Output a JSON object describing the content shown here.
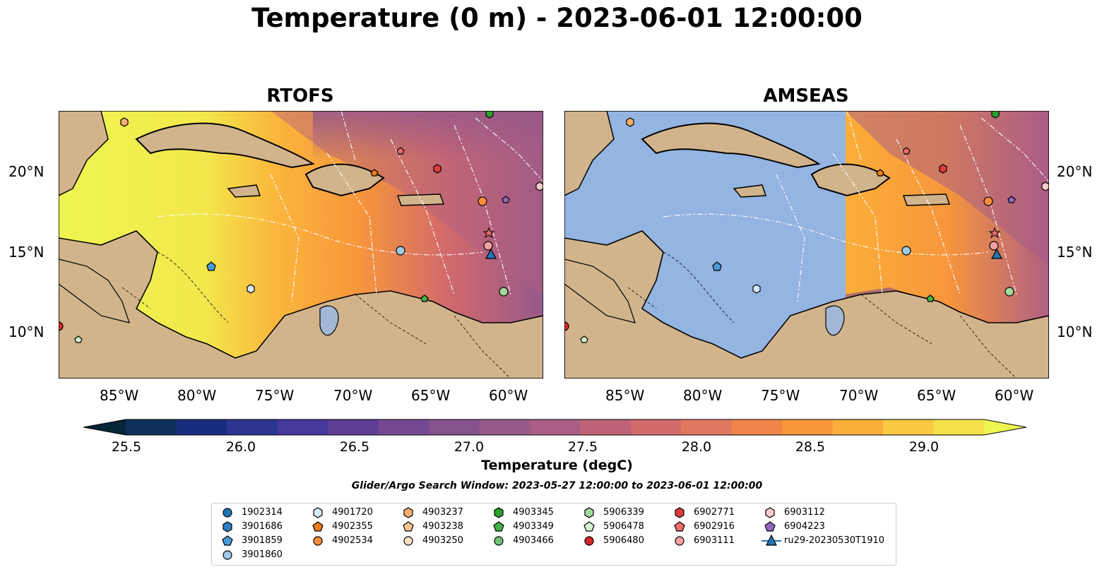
{
  "figure": {
    "title": "Temperature (0 m) - 2023-06-01 12:00:00",
    "panels": [
      {
        "title": "RTOFS"
      },
      {
        "title": "AMSEAS"
      }
    ]
  },
  "axes": {
    "x_ticks": [
      "85°W",
      "80°W",
      "75°W",
      "70°W",
      "65°W",
      "60°W"
    ],
    "y_ticks": [
      "20°N",
      "15°N",
      "10°N"
    ]
  },
  "colorbar": {
    "label": "Temperature (degC)",
    "ticks": [
      "25.5",
      "26.0",
      "26.5",
      "27.0",
      "27.5",
      "28.0",
      "28.5",
      "29.0"
    ],
    "colors": [
      "#062535",
      "#0f2f5c",
      "#192d7e",
      "#2c3591",
      "#45399b",
      "#5f3e98",
      "#744892",
      "#85528e",
      "#97598a",
      "#aa5e84",
      "#bf637a",
      "#d26a6b",
      "#e27760",
      "#ef8548",
      "#f7963b",
      "#fbae3a",
      "#f9c941",
      "#f4e04a",
      "#eef550"
    ]
  },
  "search_window": "Glider/Argo Search Window: 2023-05-27 12:00:00 to 2023-06-01 12:00:00",
  "legend": {
    "items": [
      {
        "label": "1902314",
        "marker": "circle",
        "color": "#1f77b4"
      },
      {
        "label": "3901686",
        "marker": "hexagon",
        "color": "#2e7dbf"
      },
      {
        "label": "3901859",
        "marker": "pentagon",
        "color": "#4a9bd6"
      },
      {
        "label": "3901860",
        "marker": "circle",
        "color": "#9ecae9"
      },
      {
        "label": "4901720",
        "marker": "hexagon",
        "color": "#d6e8f7"
      },
      {
        "label": "4902355",
        "marker": "pentagon",
        "color": "#ee7d1a"
      },
      {
        "label": "4902534",
        "marker": "circle",
        "color": "#fd8d3c"
      },
      {
        "label": "4903237",
        "marker": "hexagon",
        "color": "#fdae6b"
      },
      {
        "label": "4903238",
        "marker": "pentagon",
        "color": "#fdc890"
      },
      {
        "label": "4903250",
        "marker": "circle",
        "color": "#fde0c4"
      },
      {
        "label": "4903345",
        "marker": "hexagon",
        "color": "#2ca02c"
      },
      {
        "label": "4903349",
        "marker": "pentagon",
        "color": "#44b244"
      },
      {
        "label": "4903466",
        "marker": "circle",
        "color": "#74c476"
      },
      {
        "label": "5906339",
        "marker": "hexagon",
        "color": "#a1d99b"
      },
      {
        "label": "5906478",
        "marker": "pentagon",
        "color": "#d4f5cf"
      },
      {
        "label": "5906480",
        "marker": "circle",
        "color": "#d62728"
      },
      {
        "label": "6902771",
        "marker": "hexagon",
        "color": "#e03c3c"
      },
      {
        "label": "6902916",
        "marker": "pentagon",
        "color": "#f06b6b"
      },
      {
        "label": "6903111",
        "marker": "circle",
        "color": "#f4a0a0"
      },
      {
        "label": "6903112",
        "marker": "hexagon",
        "color": "#f9cccc"
      },
      {
        "label": "6904223",
        "marker": "pentagon",
        "color": "#9467bd"
      },
      {
        "label": "ru29-20230530T1910",
        "marker": "triangle",
        "color": "#1f77b4"
      }
    ]
  }
}
